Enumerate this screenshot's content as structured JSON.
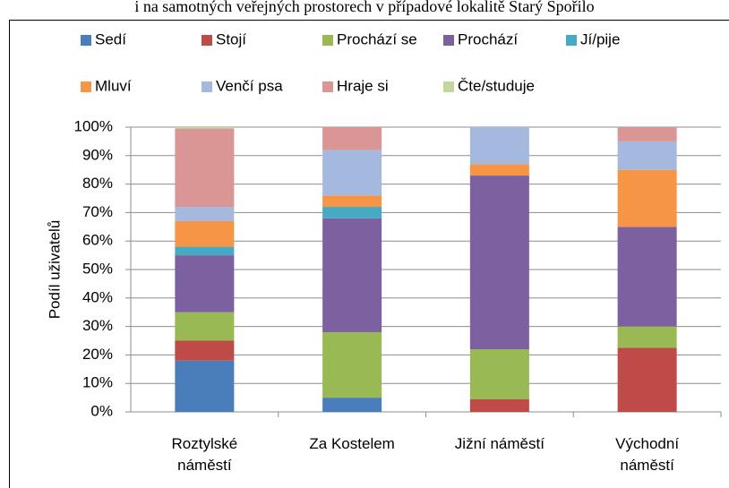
{
  "chart_data": {
    "type": "stacked_bar",
    "title": "i na samotných veřejných prostorech v případové lokalitě Starý Spořilo",
    "ylabel": "Podíl uživatelů",
    "categories": [
      "Roztylské náměstí",
      "Za Kostelem",
      "Jižní náměstí",
      "Východní náměstí"
    ],
    "series": [
      {
        "name": "Sedí",
        "color": "#4a7ebb",
        "values": [
          18,
          5,
          0,
          0
        ]
      },
      {
        "name": "Stojí",
        "color": "#be4b48",
        "values": [
          7,
          0,
          4.5,
          22.5
        ]
      },
      {
        "name": "Prochází se",
        "color": "#98b954",
        "values": [
          10,
          23,
          17.5,
          7.5
        ]
      },
      {
        "name": "Prochází",
        "color": "#7d60a0",
        "values": [
          20,
          40,
          61,
          35
        ]
      },
      {
        "name": "Jí/pije",
        "color": "#46aac5",
        "values": [
          3,
          4,
          0,
          0
        ]
      },
      {
        "name": "Mluví",
        "color": "#f69546",
        "values": [
          9,
          4,
          4,
          20
        ]
      },
      {
        "name": "Venčí psa",
        "color": "#a5b9de",
        "values": [
          5,
          16,
          13,
          10
        ]
      },
      {
        "name": "Hraje si",
        "color": "#da9694",
        "values": [
          27.5,
          8,
          0,
          5
        ]
      },
      {
        "name": "Čte/studuje",
        "color": "#c3d69b",
        "values": [
          0.5,
          0,
          0,
          0
        ]
      }
    ],
    "ylim": [
      0,
      100
    ],
    "yticks": [
      {
        "value": 0,
        "label": "0%"
      },
      {
        "value": 10,
        "label": "10%"
      },
      {
        "value": 20,
        "label": "20%"
      },
      {
        "value": 30,
        "label": "30%"
      },
      {
        "value": 40,
        "label": "40%"
      },
      {
        "value": 50,
        "label": "50%"
      },
      {
        "value": 60,
        "label": "60%"
      },
      {
        "value": 70,
        "label": "70%"
      },
      {
        "value": 80,
        "label": "80%"
      },
      {
        "value": 90,
        "label": "90%"
      },
      {
        "value": 100,
        "label": "100%"
      }
    ],
    "grid": true
  }
}
